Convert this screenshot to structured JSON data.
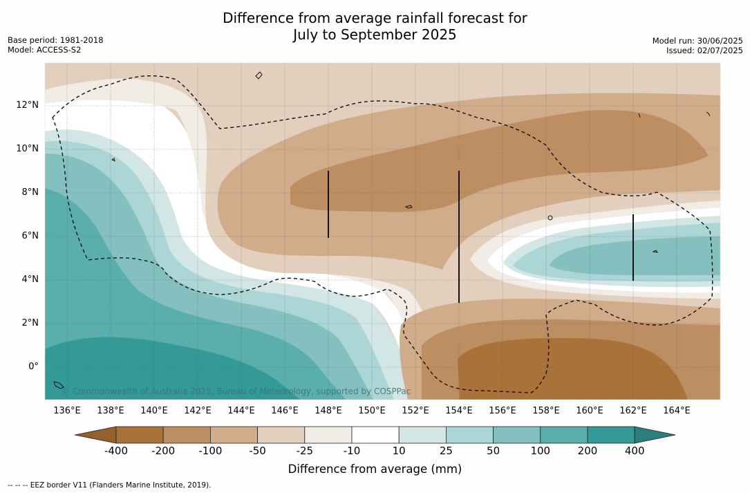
{
  "title": {
    "line1": "Difference from average rainfall forecast for",
    "line2": "July to September 2025"
  },
  "meta": {
    "base_period": "Base period: 1981-2018",
    "model": "Model: ACCESS-S2",
    "model_run": "Model run: 30/06/2025",
    "issued": "Issued: 02/07/2025"
  },
  "map": {
    "latitude_ticks": [
      "12°N",
      "10°N",
      "8°N",
      "6°N",
      "4°N",
      "2°N",
      "0°"
    ],
    "longitude_ticks": [
      "136°E",
      "138°E",
      "140°E",
      "142°E",
      "144°E",
      "146°E",
      "148°E",
      "150°E",
      "152°E",
      "154°E",
      "156°E",
      "158°E",
      "160°E",
      "162°E",
      "164°E"
    ],
    "credit": "© Commonwealth of Australia 2025, Bureau of Meteorology, supported by COSPPac",
    "lon_range": [
      135,
      166
    ],
    "lat_range": [
      -1.5,
      13.9
    ]
  },
  "legend": {
    "ticks": [
      "-400",
      "-200",
      "-100",
      "-50",
      "-25",
      "-10",
      "10",
      "25",
      "50",
      "100",
      "200",
      "400"
    ],
    "colors": [
      "#a97238",
      "#bd8e62",
      "#d0ac8b",
      "#e2cfbd",
      "#f2ece6",
      "#ffffff",
      "#d2e6e6",
      "#acd6d5",
      "#84c0bf",
      "#5aaeac",
      "#339a98"
    ],
    "extend_low_color": "#94602d",
    "extend_high_color": "#2a7f7d",
    "label": "Difference from average (mm)"
  },
  "footnote": "--  --  -- EEZ border V11 (Flanders Marine Institute, 2019)."
}
